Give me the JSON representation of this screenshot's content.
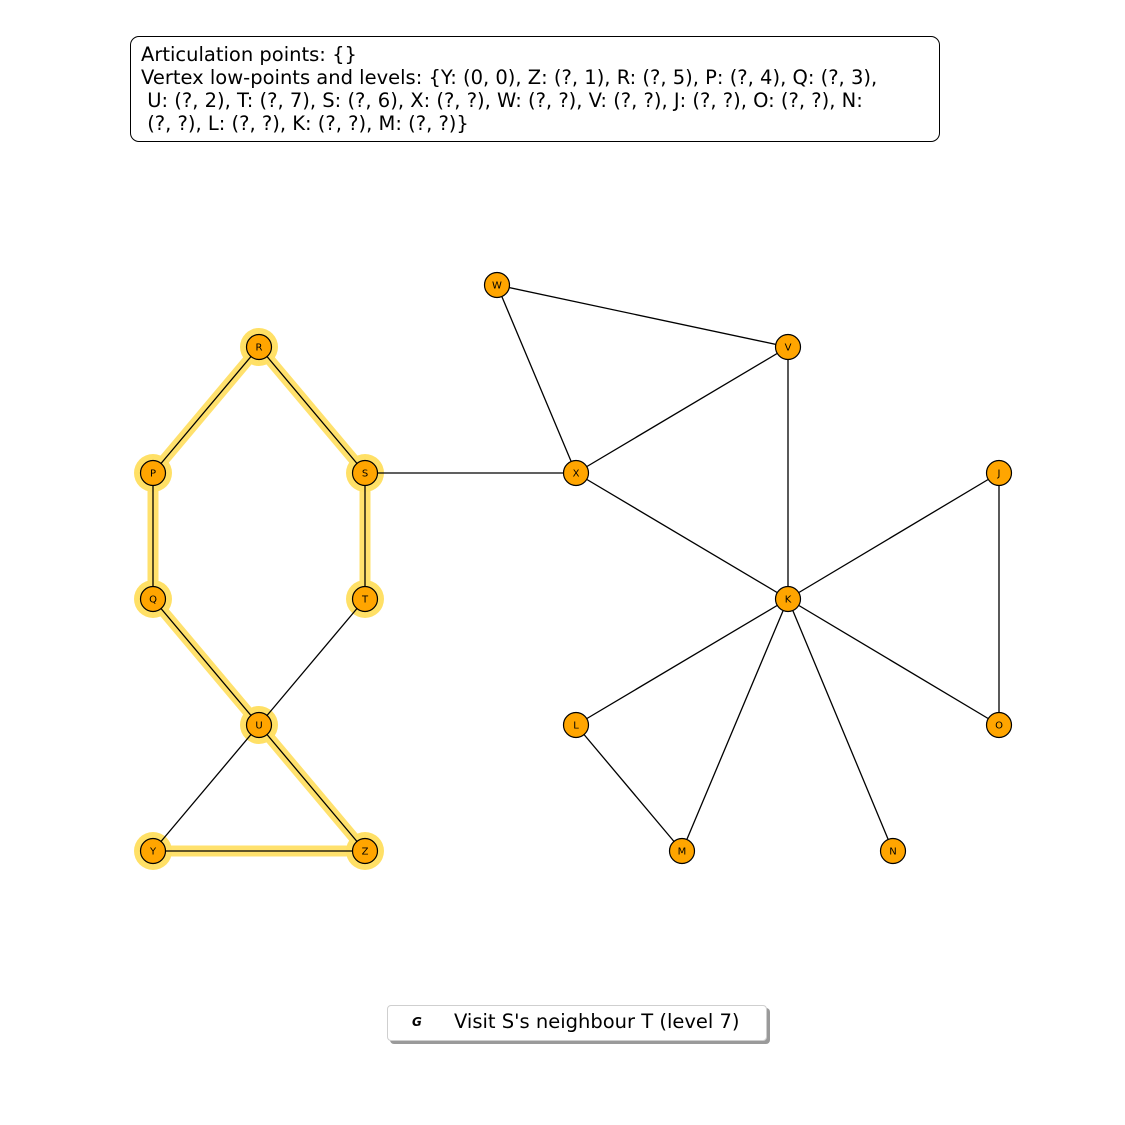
{
  "info": {
    "articulation_line": "Articulation points: {}",
    "lowpoint_lines": [
      "Vertex low-points and levels: {Y: (0, 0), Z: (?, 1), R: (?, 5), P: (?, 4), Q: (?, 3),",
      " U: (?, 2), T: (?, 7), S: (?, 6), X: (?, ?), W: (?, ?), V: (?, ?), J: (?, ?), O: (?, ?), N:",
      " (?, ?), L: (?, ?), K: (?, ?), M: (?, ?)}"
    ]
  },
  "colors": {
    "node_fill": "#FFA500",
    "node_stroke": "#000000",
    "edge": "#000000",
    "highlight": "#FFE066"
  },
  "graph": {
    "nodes": [
      "W",
      "V",
      "R",
      "P",
      "S",
      "X",
      "J",
      "Q",
      "T",
      "K",
      "U",
      "L",
      "O",
      "Y",
      "Z",
      "M",
      "N"
    ],
    "edges": [
      [
        "R",
        "P"
      ],
      [
        "R",
        "S"
      ],
      [
        "P",
        "Q"
      ],
      [
        "S",
        "T"
      ],
      [
        "Q",
        "U"
      ],
      [
        "U",
        "Z"
      ],
      [
        "Y",
        "Z"
      ],
      [
        "T",
        "U"
      ],
      [
        "U",
        "Y"
      ],
      [
        "S",
        "X"
      ],
      [
        "W",
        "X"
      ],
      [
        "W",
        "V"
      ],
      [
        "X",
        "V"
      ],
      [
        "V",
        "K"
      ],
      [
        "X",
        "K"
      ],
      [
        "K",
        "J"
      ],
      [
        "J",
        "O"
      ],
      [
        "K",
        "O"
      ],
      [
        "K",
        "L"
      ],
      [
        "L",
        "M"
      ],
      [
        "K",
        "M"
      ],
      [
        "K",
        "N"
      ]
    ],
    "highlighted_edges": [
      [
        "R",
        "P"
      ],
      [
        "R",
        "S"
      ],
      [
        "P",
        "Q"
      ],
      [
        "S",
        "T"
      ],
      [
        "Q",
        "U"
      ],
      [
        "U",
        "Z"
      ],
      [
        "Y",
        "Z"
      ]
    ],
    "highlighted_nodes": [
      "R",
      "P",
      "S",
      "Q",
      "T",
      "U",
      "Y",
      "Z"
    ]
  },
  "legend": {
    "marker": "G",
    "label": "Visit S's neighbour T (level 7)"
  }
}
